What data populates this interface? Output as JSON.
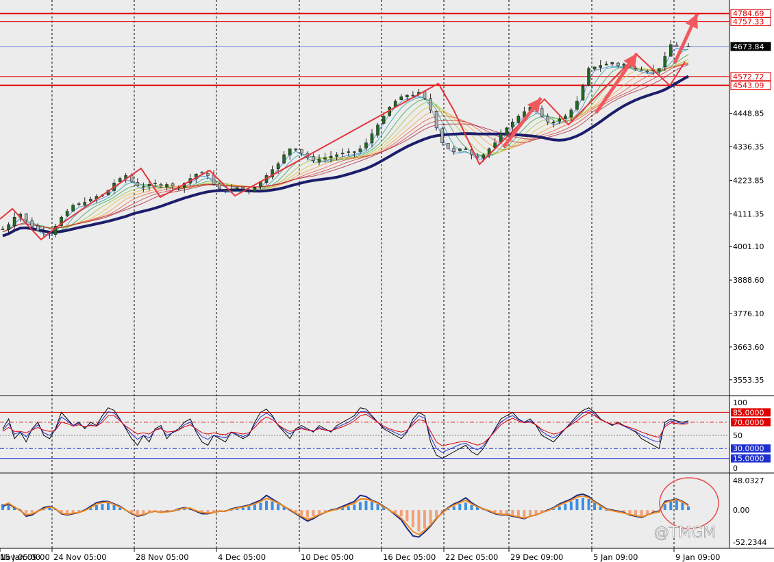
{
  "colors": {
    "background": "#ececec",
    "bull": "#1e6b1e",
    "bear": "#b0b0b0",
    "trendline": "#e8333a",
    "ma_slow": "#1c1d6b",
    "level": "#e00000",
    "current": "#3f5fd0",
    "macd_pos": "#3c8fe0",
    "macd_neg": "#f2a07a"
  },
  "watermark": "@TMGM",
  "chart_data": [
    {
      "type": "candlestick",
      "panel": "price",
      "ylim": [
        3500,
        4830
      ],
      "y_ticks": [
        "4448.85",
        "4336.35",
        "4223.85",
        "4111.35",
        "4001.10",
        "3888.60",
        "3776.10",
        "3663.60",
        "3553.35"
      ],
      "x_ticks": [
        "Nov 05:00",
        "24 Nov 05:00",
        "28 Nov 05:00",
        "4 Dec 05:00",
        "10 Dec 05:00",
        "16 Dec 05:00",
        "22 Dec 05:00",
        "29 Dec 09:00",
        "5 Jan 09:00",
        "9 Jan 09:00",
        "15 Jan 09:00"
      ],
      "horizontal_levels": [
        {
          "label": "4784.69",
          "value": 4784.69,
          "style": "thick-red"
        },
        {
          "label": "4757.33",
          "value": 4757.33,
          "style": "thin-red"
        },
        {
          "label": "4673.84",
          "value": 4673.84,
          "style": "current"
        },
        {
          "label": "4572.72",
          "value": 4572.72,
          "style": "thin-red"
        },
        {
          "label": "4543.09",
          "value": 4543.09,
          "style": "thick-red"
        }
      ],
      "series": [
        {
          "values": [
            4060,
            4075,
            4100,
            4110,
            4090,
            4070,
            4055,
            4050,
            4045,
            4070,
            4100,
            4120,
            4140,
            4145,
            4150,
            4160,
            4170,
            4175,
            4190,
            4215,
            4230,
            4240,
            4220,
            4205,
            4200,
            4210,
            4215,
            4205,
            4210,
            4205,
            4200,
            4215,
            4230,
            4245,
            4250,
            4240,
            4210,
            4195,
            4190,
            4195,
            4200,
            4195,
            4190,
            4200,
            4220,
            4240,
            4260,
            4280,
            4310,
            4330,
            4330,
            4315,
            4300,
            4290,
            4295,
            4300,
            4305,
            4310,
            4315,
            4320,
            4320,
            4330,
            4350,
            4380,
            4410,
            4440,
            4470,
            4490,
            4505,
            4510,
            4510,
            4520,
            4500,
            4460,
            4400,
            4350,
            4330,
            4320,
            4330,
            4330,
            4310,
            4300,
            4310,
            4330,
            4350,
            4380,
            4400,
            4420,
            4440,
            4455,
            4470,
            4460,
            4440,
            4420,
            4420,
            4430,
            4440,
            4460,
            4490,
            4540,
            4600,
            4605,
            4610,
            4615,
            4620,
            4610,
            4615,
            4605,
            4600,
            4595,
            4590,
            4595,
            4600,
            4640,
            4680,
            4675,
            4670,
            4673.84
          ]
        }
      ]
    },
    {
      "type": "line",
      "panel": "oscillator",
      "ylim": [
        0,
        100
      ],
      "y_ticks": [
        "100",
        "50",
        "0"
      ],
      "levels": [
        {
          "label": "85.0000",
          "value": 85
        },
        {
          "label": "70.0000",
          "value": 70
        },
        {
          "label": "30.0000",
          "value": 30
        },
        {
          "label": "15.0000",
          "value": 15
        }
      ],
      "series": [
        {
          "values": [
            60,
            75,
            45,
            55,
            40,
            60,
            70,
            50,
            45,
            60,
            85,
            75,
            65,
            70,
            60,
            70,
            65,
            80,
            92,
            88,
            75,
            60,
            45,
            35,
            50,
            40,
            60,
            65,
            45,
            55,
            60,
            70,
            75,
            55,
            40,
            35,
            50,
            45,
            40,
            55,
            50,
            45,
            50,
            70,
            85,
            90,
            80,
            65,
            55,
            45,
            60,
            65,
            60,
            55,
            65,
            60,
            55,
            65,
            70,
            75,
            80,
            92,
            90,
            80,
            70,
            60,
            55,
            50,
            45,
            55,
            75,
            85,
            80,
            40,
            20,
            15,
            20,
            25,
            30,
            35,
            25,
            20,
            30,
            45,
            60,
            75,
            80,
            85,
            75,
            70,
            75,
            65,
            50,
            45,
            40,
            50,
            60,
            70,
            80,
            88,
            92,
            85,
            75,
            70,
            65,
            70,
            65,
            60,
            55,
            45,
            40,
            35,
            30,
            70,
            75,
            72,
            70,
            72
          ]
        },
        {
          "values": [
            58,
            68,
            52,
            55,
            48,
            58,
            66,
            54,
            50,
            58,
            78,
            72,
            65,
            68,
            62,
            66,
            64,
            74,
            86,
            84,
            74,
            62,
            52,
            44,
            50,
            46,
            58,
            62,
            50,
            54,
            58,
            66,
            70,
            58,
            48,
            44,
            50,
            48,
            46,
            54,
            52,
            48,
            52,
            66,
            78,
            84,
            78,
            66,
            58,
            52,
            58,
            62,
            58,
            56,
            62,
            58,
            56,
            62,
            66,
            70,
            76,
            86,
            86,
            78,
            70,
            62,
            58,
            54,
            50,
            56,
            70,
            80,
            76,
            48,
            30,
            24,
            28,
            32,
            36,
            38,
            32,
            28,
            34,
            46,
            58,
            70,
            76,
            80,
            74,
            70,
            72,
            66,
            56,
            50,
            46,
            52,
            60,
            68,
            76,
            84,
            88,
            82,
            74,
            70,
            66,
            68,
            64,
            60,
            56,
            50,
            46,
            42,
            40,
            66,
            72,
            70,
            68,
            70
          ]
        },
        {
          "values": [
            56,
            62,
            56,
            56,
            54,
            58,
            62,
            58,
            56,
            58,
            70,
            68,
            64,
            66,
            63,
            65,
            64,
            70,
            80,
            80,
            72,
            64,
            58,
            52,
            54,
            52,
            58,
            60,
            55,
            56,
            58,
            63,
            66,
            60,
            54,
            52,
            54,
            52,
            51,
            55,
            54,
            52,
            54,
            62,
            72,
            78,
            74,
            66,
            60,
            56,
            58,
            60,
            58,
            57,
            60,
            58,
            57,
            60,
            63,
            67,
            72,
            80,
            82,
            76,
            70,
            64,
            60,
            57,
            55,
            58,
            66,
            74,
            72,
            56,
            40,
            34,
            36,
            38,
            40,
            41,
            38,
            35,
            38,
            46,
            56,
            66,
            72,
            76,
            72,
            69,
            70,
            66,
            59,
            55,
            52,
            54,
            60,
            66,
            72,
            79,
            84,
            80,
            74,
            70,
            67,
            68,
            65,
            62,
            59,
            55,
            52,
            49,
            47,
            63,
            69,
            68,
            67,
            68
          ]
        }
      ]
    },
    {
      "type": "bar",
      "panel": "macd",
      "ylim": [
        -52.2344,
        48.0327
      ],
      "y_ticks": [
        "48.0327",
        "0.00",
        "-52.2344"
      ],
      "series": [
        {
          "values": [
            10,
            12,
            6,
            -2,
            -6,
            -4,
            -2,
            1,
            4,
            2,
            -4,
            -6,
            -4,
            -3,
            -1,
            3,
            8,
            10,
            12,
            8,
            4,
            0,
            -4,
            -8,
            -6,
            -4,
            -2,
            -3,
            -3,
            -2,
            0,
            2,
            3,
            -1,
            -3,
            -4,
            -3,
            -2,
            -2,
            0,
            2,
            4,
            6,
            9,
            12,
            15,
            14,
            10,
            6,
            2,
            -4,
            -8,
            -12,
            -10,
            -6,
            -3,
            -1,
            1,
            3,
            6,
            9,
            13,
            15,
            14,
            10,
            5,
            0,
            -5,
            -10,
            -18,
            -28,
            -35,
            -30,
            -22,
            -12,
            -5,
            2,
            6,
            10,
            12,
            8,
            5,
            3,
            0,
            -4,
            -6,
            -6,
            -8,
            -10,
            -12,
            -10,
            -8,
            -4,
            -2,
            2,
            6,
            10,
            14,
            18,
            20,
            18,
            12,
            6,
            0,
            -2,
            -2,
            -4,
            -6,
            -8,
            -10,
            -8,
            -6,
            -4,
            10,
            14,
            16,
            12,
            6
          ]
        },
        {
          "values": [
            6,
            10,
            4,
            0,
            -10,
            -8,
            -2,
            4,
            6,
            2,
            -6,
            -8,
            -6,
            -4,
            0,
            6,
            12,
            14,
            14,
            10,
            6,
            0,
            -6,
            -10,
            -8,
            -4,
            -2,
            -4,
            -2,
            -2,
            2,
            4,
            2,
            -2,
            -6,
            -6,
            -4,
            -2,
            -2,
            2,
            4,
            6,
            8,
            12,
            16,
            24,
            18,
            12,
            6,
            0,
            -6,
            -12,
            -18,
            -14,
            -8,
            -4,
            0,
            2,
            6,
            10,
            14,
            24,
            22,
            16,
            12,
            6,
            0,
            -8,
            -16,
            -30,
            -42,
            -44,
            -36,
            -26,
            -14,
            -4,
            4,
            10,
            14,
            20,
            12,
            6,
            2,
            -2,
            -6,
            -8,
            -8,
            -10,
            -12,
            -14,
            -10,
            -8,
            -4,
            0,
            4,
            10,
            14,
            18,
            24,
            26,
            22,
            14,
            8,
            2,
            0,
            -2,
            -4,
            -8,
            -10,
            -12,
            -8,
            -4,
            -2,
            14,
            16,
            18,
            14,
            8
          ]
        },
        {
          "values": [
            8,
            11,
            5,
            -1,
            -8,
            -6,
            -2,
            2,
            5,
            2,
            -5,
            -7,
            -5,
            -4,
            -1,
            4,
            10,
            12,
            13,
            9,
            5,
            0,
            -5,
            -9,
            -7,
            -4,
            -2,
            -4,
            -3,
            -2,
            1,
            3,
            3,
            -1,
            -4,
            -5,
            -4,
            -2,
            -2,
            1,
            3,
            5,
            7,
            10,
            14,
            19,
            16,
            11,
            6,
            1,
            -5,
            -10,
            -15,
            -12,
            -7,
            -4,
            -1,
            1,
            4,
            8,
            11,
            18,
            18,
            15,
            11,
            5,
            0,
            -6,
            -13,
            -24,
            -35,
            -40,
            -33,
            -24,
            -13,
            -5,
            3,
            8,
            12,
            16,
            10,
            5,
            2,
            -1,
            -5,
            -7,
            -7,
            -9,
            -11,
            -13,
            -10,
            -8,
            -4,
            -1,
            3,
            8,
            12,
            16,
            21,
            23,
            20,
            13,
            7,
            1,
            -1,
            -3,
            -5,
            -7,
            -9,
            -11,
            -8,
            -5,
            -3,
            12,
            15,
            17,
            13,
            7
          ]
        }
      ]
    }
  ]
}
